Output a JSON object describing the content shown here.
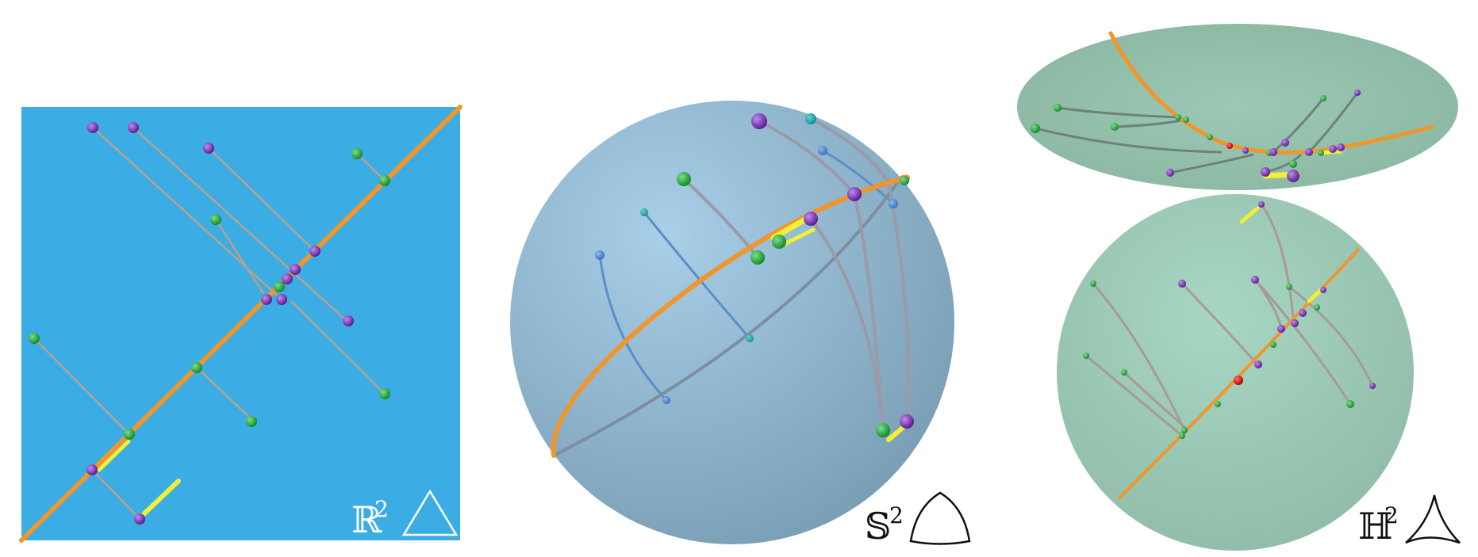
{
  "panels": {
    "euclidean": {
      "symbol": "ℝ",
      "exponent": "2",
      "background_color": "#3badE4",
      "label_color": "#ffffff"
    },
    "spherical": {
      "symbol": "𝕊",
      "exponent": "2",
      "surface_color": "#8fb6d0",
      "label_color": "#111111"
    },
    "hyperbolic": {
      "symbol": "ℍ",
      "exponent": "2",
      "surface_color": "#9dc9b6",
      "label_color": "#111111"
    }
  },
  "colors": {
    "line": "#f0962a",
    "segment": "#f2f035",
    "green_point": "#2db843",
    "purple_point": "#8a35c4",
    "red_point": "#e8161a",
    "connector": "#b8a08e",
    "sphere_back_connector": "#5b8ec9"
  },
  "icons": [
    "triangle-icon",
    "spherical-triangle-icon",
    "hyperbolic-triangle-icon"
  ]
}
